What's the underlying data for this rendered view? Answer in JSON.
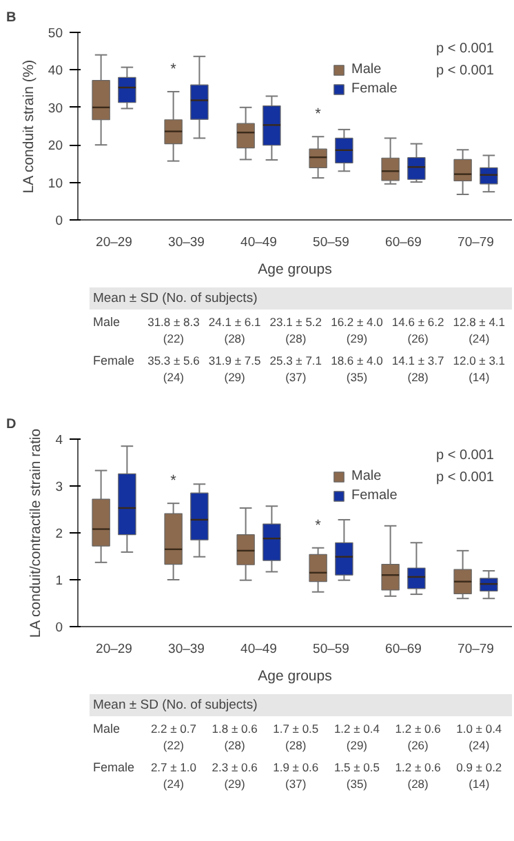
{
  "chart_data": [
    {
      "type": "box",
      "title": "B",
      "xlabel": "Age groups",
      "ylabel": "LA conduit strain (%)",
      "categories": [
        "20–29",
        "30–39",
        "40–49",
        "50–59",
        "60–69",
        "70–79"
      ],
      "ylim": [
        0,
        50
      ],
      "yticks": [
        0,
        10,
        20,
        30,
        40,
        50
      ],
      "grid": false,
      "legend": "top right",
      "series": [
        {
          "name": "Male",
          "color": "#8c6a4e",
          "boxes": [
            {
              "low": 20,
              "q1": 26.7,
              "median": 30,
              "q3": 37.2,
              "high": 44
            },
            {
              "low": 15.7,
              "q1": 20.3,
              "median": 23.6,
              "q3": 26.7,
              "high": 34.2
            },
            {
              "low": 16.1,
              "q1": 19.2,
              "median": 23.3,
              "q3": 25.7,
              "high": 30
            },
            {
              "low": 11.2,
              "q1": 13.9,
              "median": 16.7,
              "q3": 18.9,
              "high": 22.2
            },
            {
              "low": 9.6,
              "q1": 10.5,
              "median": 13,
              "q3": 16.5,
              "high": 21.8
            },
            {
              "low": 6.8,
              "q1": 10.4,
              "median": 12.2,
              "q3": 16.1,
              "high": 18.7
            }
          ]
        },
        {
          "name": "Female",
          "color": "#1432a0",
          "boxes": [
            {
              "low": 29.7,
              "q1": 31.3,
              "median": 35.3,
              "q3": 38,
              "high": 40.7
            },
            {
              "low": 21.8,
              "q1": 26.8,
              "median": 31.9,
              "q3": 36,
              "high": 43.6
            },
            {
              "low": 16,
              "q1": 19.9,
              "median": 25.3,
              "q3": 30.4,
              "high": 33
            },
            {
              "low": 13,
              "q1": 15.2,
              "median": 18.6,
              "q3": 21.8,
              "high": 24.1
            },
            {
              "low": 10.1,
              "q1": 10.8,
              "median": 14.1,
              "q3": 16.6,
              "high": 20.3
            },
            {
              "low": 7.5,
              "q1": 9.6,
              "median": 12,
              "q3": 13.9,
              "high": 17.2
            }
          ]
        }
      ],
      "annotations": [
        {
          "text": "*",
          "x": "30–39",
          "y": 34.2
        },
        {
          "text": "*",
          "x": "50–59",
          "y": 22.2
        },
        "p < 0.001",
        "p < 0.001",
        "Mean ± SD (No. of subjects)",
        "Male",
        "31.8 ± 8.3\n(22)",
        "24.1 ± 6.1\n(28)",
        "23.1 ± 5.2\n(28)",
        "16.2 ± 4.0\n(29)",
        "14.6 ± 6.2\n(26)",
        "12.8 ± 4.1\n(24)",
        "Female",
        "35.3 ± 5.6\n(24)",
        "31.9 ± 7.5\n(29)",
        "25.3 ± 7.1\n(37)",
        "18.6 ± 4.0\n(35)",
        "14.1 ± 3.7\n(28)",
        "12.0 ± 3.1\n(14)"
      ]
    },
    {
      "type": "box",
      "title": "D",
      "xlabel": "Age groups",
      "ylabel": "LA conduit/contractile strain ratio",
      "categories": [
        "20–29",
        "30–39",
        "40–49",
        "50–59",
        "60–69",
        "70–79"
      ],
      "ylim": [
        0,
        4
      ],
      "yticks": [
        0,
        1,
        2,
        3,
        4
      ],
      "grid": false,
      "legend": "top right",
      "series": [
        {
          "name": "Male",
          "color": "#8c6a4e",
          "boxes": [
            {
              "low": 1.37,
              "q1": 1.72,
              "median": 2.08,
              "q3": 2.72,
              "high": 3.33
            },
            {
              "low": 1.0,
              "q1": 1.33,
              "median": 1.65,
              "q3": 2.41,
              "high": 2.63
            },
            {
              "low": 0.99,
              "q1": 1.32,
              "median": 1.62,
              "q3": 1.96,
              "high": 2.53
            },
            {
              "low": 0.74,
              "q1": 0.96,
              "median": 1.15,
              "q3": 1.54,
              "high": 1.68
            },
            {
              "low": 0.65,
              "q1": 0.78,
              "median": 1.1,
              "q3": 1.33,
              "high": 2.15
            },
            {
              "low": 0.6,
              "q1": 0.7,
              "median": 0.96,
              "q3": 1.22,
              "high": 1.62
            }
          ]
        },
        {
          "name": "Female",
          "color": "#1432a0",
          "boxes": [
            {
              "low": 1.59,
              "q1": 1.96,
              "median": 2.53,
              "q3": 3.26,
              "high": 3.85
            },
            {
              "low": 1.49,
              "q1": 1.85,
              "median": 2.28,
              "q3": 2.85,
              "high": 3.04
            },
            {
              "low": 1.17,
              "q1": 1.41,
              "median": 1.88,
              "q3": 2.19,
              "high": 2.57
            },
            {
              "low": 0.99,
              "q1": 1.1,
              "median": 1.49,
              "q3": 1.79,
              "high": 2.28
            },
            {
              "low": 0.69,
              "q1": 0.81,
              "median": 1.06,
              "q3": 1.25,
              "high": 1.79
            },
            {
              "low": 0.6,
              "q1": 0.76,
              "median": 0.91,
              "q3": 1.03,
              "high": 1.19
            }
          ]
        }
      ],
      "annotations": [
        {
          "text": "*",
          "x": "30–39",
          "y": 2.63
        },
        {
          "text": "*",
          "x": "50–59",
          "y": 1.68
        },
        "p < 0.001",
        "p < 0.001",
        "Mean ± SD (No. of subjects)",
        "Male",
        "2.2 ± 0.7\n(22)",
        "1.8 ± 0.6\n(28)",
        "1.7 ± 0.5\n(28)",
        "1.2 ± 0.4\n(29)",
        "1.2 ± 0.6\n(26)",
        "1.0 ± 0.4\n(24)",
        "Female",
        "2.7 ± 1.0\n(24)",
        "2.3 ± 0.6\n(29)",
        "1.9 ± 0.6\n(37)",
        "1.5 ± 0.5\n(35)",
        "1.2 ± 0.6\n(28)",
        "0.9 ± 0.2\n(14)"
      ]
    }
  ]
}
